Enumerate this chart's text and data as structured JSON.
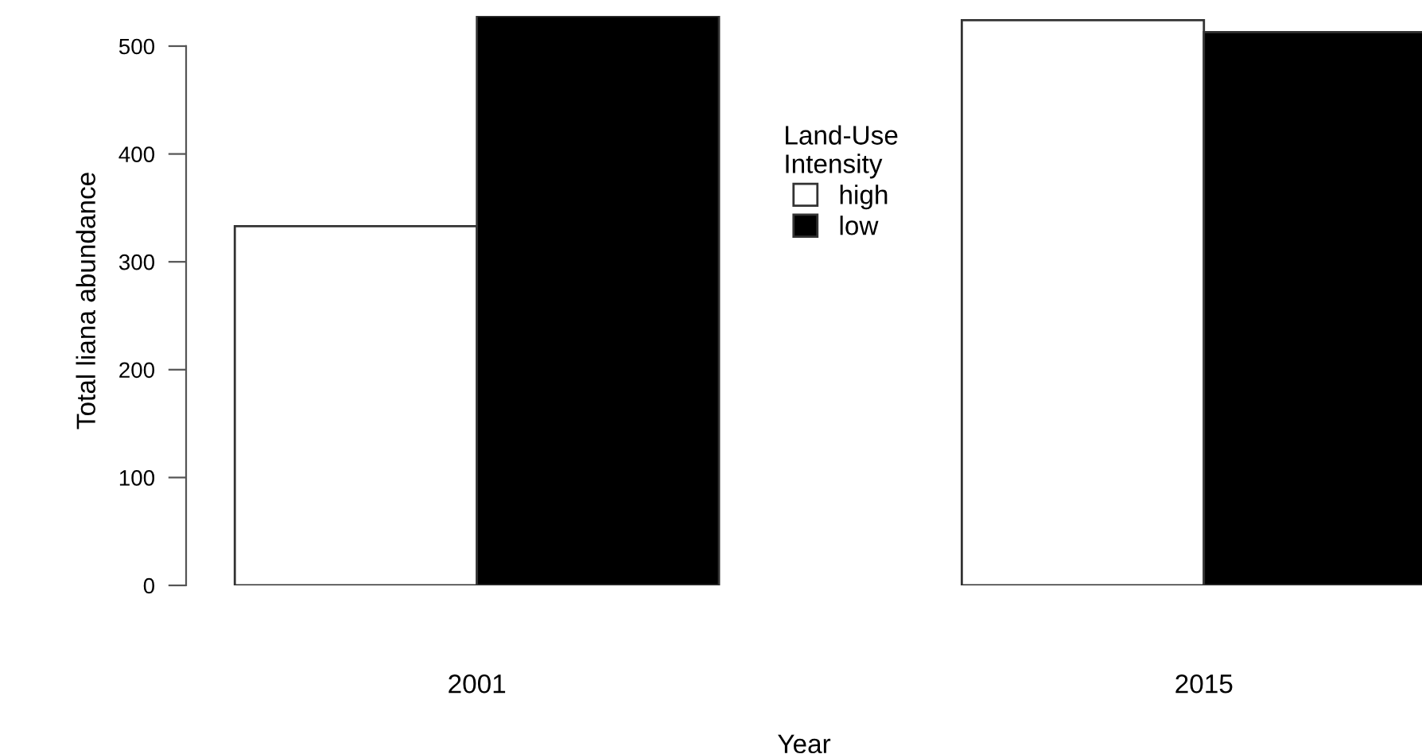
{
  "chart_data": {
    "type": "bar",
    "xlabel": "Year",
    "ylabel": "Total liana abundance",
    "legend_title": "Land-Use\nIntensity",
    "categories": [
      "2001",
      "2015"
    ],
    "series": [
      {
        "name": "high",
        "color": "#ffffff",
        "values": [
          333,
          524
        ]
      },
      {
        "name": "low",
        "color": "#000000",
        "values": [
          528,
          513
        ]
      }
    ],
    "ylim": [
      0,
      528
    ],
    "yticks": [
      0,
      100,
      200,
      300,
      400,
      500
    ],
    "grid": false,
    "legend": "top"
  }
}
